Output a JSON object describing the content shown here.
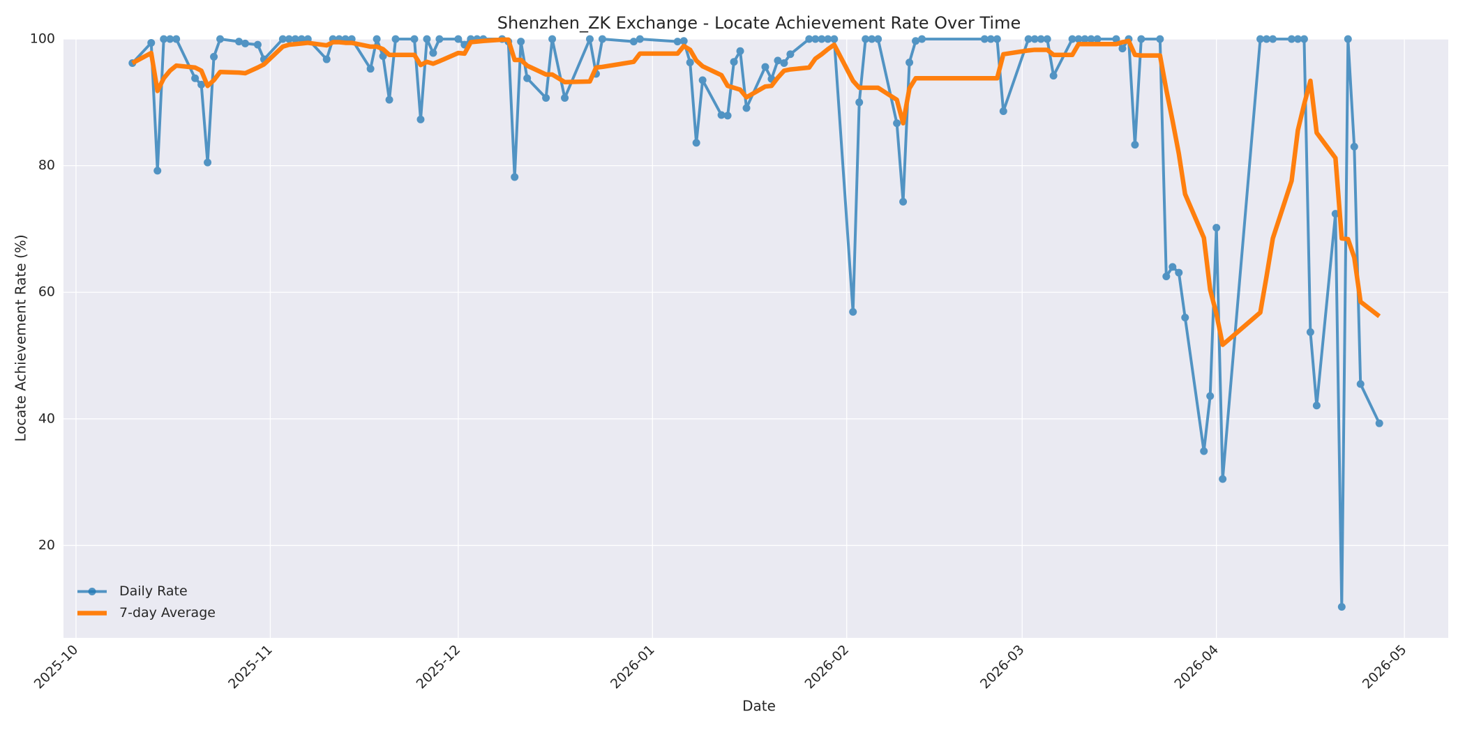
{
  "chart_data": {
    "type": "line",
    "title": "Shenzhen_ZK Exchange - Locate Achievement Rate Over Time",
    "xlabel": "Date",
    "ylabel": "Locate Achievement Rate (%)",
    "x": [
      "2025-10-10",
      "2025-10-13",
      "2025-10-14",
      "2025-10-15",
      "2025-10-16",
      "2025-10-17",
      "2025-10-20",
      "2025-10-21",
      "2025-10-22",
      "2025-10-23",
      "2025-10-24",
      "2025-10-27",
      "2025-10-28",
      "2025-10-30",
      "2025-10-31",
      "2025-11-03",
      "2025-11-04",
      "2025-11-05",
      "2025-11-06",
      "2025-11-07",
      "2025-11-10",
      "2025-11-11",
      "2025-11-12",
      "2025-11-13",
      "2025-11-14",
      "2025-11-17",
      "2025-11-18",
      "2025-11-19",
      "2025-11-20",
      "2025-11-21",
      "2025-11-24",
      "2025-11-25",
      "2025-11-26",
      "2025-11-27",
      "2025-11-28",
      "2025-12-01",
      "2025-12-02",
      "2025-12-03",
      "2025-12-04",
      "2025-12-05",
      "2025-12-08",
      "2025-12-09",
      "2025-12-10",
      "2025-12-11",
      "2025-12-12",
      "2025-12-15",
      "2025-12-16",
      "2025-12-18",
      "2025-12-22",
      "2025-12-23",
      "2025-12-24",
      "2025-12-29",
      "2025-12-30",
      "2026-01-05",
      "2026-01-06",
      "2026-01-07",
      "2026-01-08",
      "2026-01-09",
      "2026-01-12",
      "2026-01-13",
      "2026-01-14",
      "2026-01-15",
      "2026-01-16",
      "2026-01-19",
      "2026-01-20",
      "2026-01-21",
      "2026-01-22",
      "2026-01-23",
      "2026-01-26",
      "2026-01-27",
      "2026-01-28",
      "2026-01-29",
      "2026-01-30",
      "2026-02-02",
      "2026-02-03",
      "2026-02-04",
      "2026-02-05",
      "2026-02-06",
      "2026-02-09",
      "2026-02-10",
      "2026-02-11",
      "2026-02-12",
      "2026-02-13",
      "2026-02-23",
      "2026-02-24",
      "2026-02-25",
      "2026-02-26",
      "2026-03-02",
      "2026-03-03",
      "2026-03-04",
      "2026-03-05",
      "2026-03-06",
      "2026-03-09",
      "2026-03-10",
      "2026-03-11",
      "2026-03-12",
      "2026-03-13",
      "2026-03-16",
      "2026-03-17",
      "2026-03-18",
      "2026-03-19",
      "2026-03-20",
      "2026-03-23",
      "2026-03-24",
      "2026-03-25",
      "2026-03-26",
      "2026-03-27",
      "2026-03-30",
      "2026-03-31",
      "2026-04-01",
      "2026-04-02",
      "2026-04-08",
      "2026-04-09",
      "2026-04-10",
      "2026-04-13",
      "2026-04-14",
      "2026-04-15",
      "2026-04-16",
      "2026-04-17",
      "2026-04-20",
      "2026-04-21",
      "2026-04-22",
      "2026-04-23",
      "2026-04-24",
      "2026-04-27"
    ],
    "series": [
      {
        "name": "Daily Rate",
        "color": "#1f77b4",
        "marker": "o",
        "width": 4,
        "opacity": 0.75,
        "values": [
          96.2,
          99.4,
          79.2,
          100,
          100,
          100,
          93.8,
          92.8,
          80.5,
          97.2,
          100,
          99.6,
          99.3,
          99.1,
          96.8,
          100,
          100,
          100,
          100,
          100,
          96.8,
          100,
          100,
          100,
          100,
          95.3,
          100,
          97.3,
          90.4,
          100,
          100,
          87.3,
          100,
          97.8,
          100,
          100,
          99.1,
          100,
          100,
          100,
          100,
          99.6,
          78.2,
          99.6,
          93.8,
          90.7,
          100,
          90.7,
          100,
          94.5,
          100,
          99.6,
          100,
          99.6,
          99.7,
          96.3,
          83.6,
          93.5,
          88.0,
          87.9,
          96.4,
          98.1,
          89.1,
          95.6,
          93.7,
          96.6,
          96.2,
          97.6,
          100,
          100,
          100,
          100,
          100,
          56.9,
          90.0,
          100,
          100,
          100,
          86.7,
          74.3,
          96.3,
          99.7,
          100,
          100,
          100,
          100,
          88.6,
          100,
          100,
          100,
          100,
          94.2,
          100,
          100,
          100,
          100,
          100,
          100,
          98.5,
          100,
          83.3,
          100,
          100,
          62.5,
          64.0,
          63.1,
          56.0,
          34.9,
          43.6,
          70.2,
          30.5,
          100,
          100,
          100,
          100,
          100,
          100,
          53.7,
          42.1,
          72.4,
          10.3,
          100,
          83.0,
          45.5,
          39.3
        ]
      },
      {
        "name": "7-day Average",
        "color": "#ff7f0e",
        "width": 6.5,
        "opacity": 1,
        "values": [
          96.2,
          97.8,
          91.8,
          93.8,
          95.0,
          95.8,
          95.5,
          95.0,
          92.6,
          93.5,
          94.8,
          94.7,
          94.6,
          95.5,
          96.0,
          98.8,
          99.1,
          99.2,
          99.3,
          99.4,
          99.0,
          99.5,
          99.5,
          99.4,
          99.4,
          98.8,
          98.8,
          98.4,
          97.5,
          97.5,
          97.5,
          95.9,
          96.4,
          96.1,
          96.5,
          97.8,
          97.7,
          99.5,
          99.6,
          99.7,
          99.9,
          99.9,
          96.7,
          96.7,
          95.8,
          94.4,
          94.4,
          93.2,
          93.3,
          95.5,
          95.6,
          96.4,
          97.7,
          97.7,
          98.9,
          98.3,
          96.6,
          95.7,
          94.3,
          92.6,
          92.3,
          92.0,
          90.8,
          92.5,
          92.6,
          93.9,
          95.0,
          95.2,
          95.5,
          96.9,
          97.6,
          98.4,
          99.1,
          93.4,
          92.3,
          92.3,
          92.3,
          92.3,
          90.4,
          86.7,
          92.2,
          93.8,
          93.8,
          93.8,
          93.8,
          93.8,
          97.6,
          98.2,
          98.3,
          98.3,
          98.3,
          97.5,
          97.5,
          99.2,
          99.2,
          99.2,
          99.2,
          99.2,
          99.5,
          99.7,
          97.5,
          97.4,
          97.4,
          92.0,
          87.1,
          81.9,
          75.5,
          68.6,
          60.4,
          56.6,
          51.7,
          56.8,
          62.5,
          68.5,
          77.6,
          85.6,
          89.7,
          93.4,
          85.2,
          81.2,
          68.5,
          68.4,
          65.5,
          58.5,
          56.2
        ]
      }
    ],
    "xlim": [
      "2025-09-29",
      "2026-05-08"
    ],
    "xticks": [
      "2025-10",
      "2025-11",
      "2025-12",
      "2026-01",
      "2026-02",
      "2026-03",
      "2026-04",
      "2026-05"
    ],
    "ylim": [
      5.4,
      100
    ],
    "yticks": [
      20,
      40,
      60,
      80,
      100
    ],
    "grid": true,
    "legend": "lower left"
  }
}
